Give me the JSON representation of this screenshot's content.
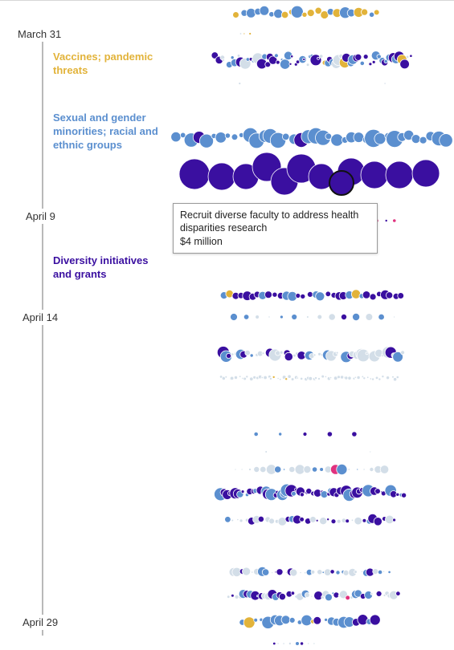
{
  "chart_data": {
    "type": "scatter",
    "description_mode": "beeswarm timeline of grants, one bubble per grant, bubble size proportional to grant amount",
    "dates": [
      {
        "label": "March 31"
      },
      {
        "label": "April 9"
      },
      {
        "label": "April 14"
      },
      {
        "label": "April 29"
      }
    ],
    "categories": [
      {
        "label": "Vaccines; pandemic\nthreats",
        "color": "#e2b33a"
      },
      {
        "label": "Sexual and gender\nminorities; racial and\nethnic groups",
        "color": "#5b8fcf"
      },
      {
        "label": "Diversity initiatives\nand grants",
        "color": "#3a0fa0"
      }
    ],
    "colors": {
      "vaccines": "#e2b33a",
      "minorities": "#5b8fcf",
      "diversity": "#3a0fa0",
      "other": "#d3dee8",
      "other_highlight": "#e0317e",
      "timeline": "#b9b9b9"
    },
    "tooltip": {
      "title": "Recruit diverse faculty to address health disparities research",
      "amount": "$4 million"
    }
  }
}
